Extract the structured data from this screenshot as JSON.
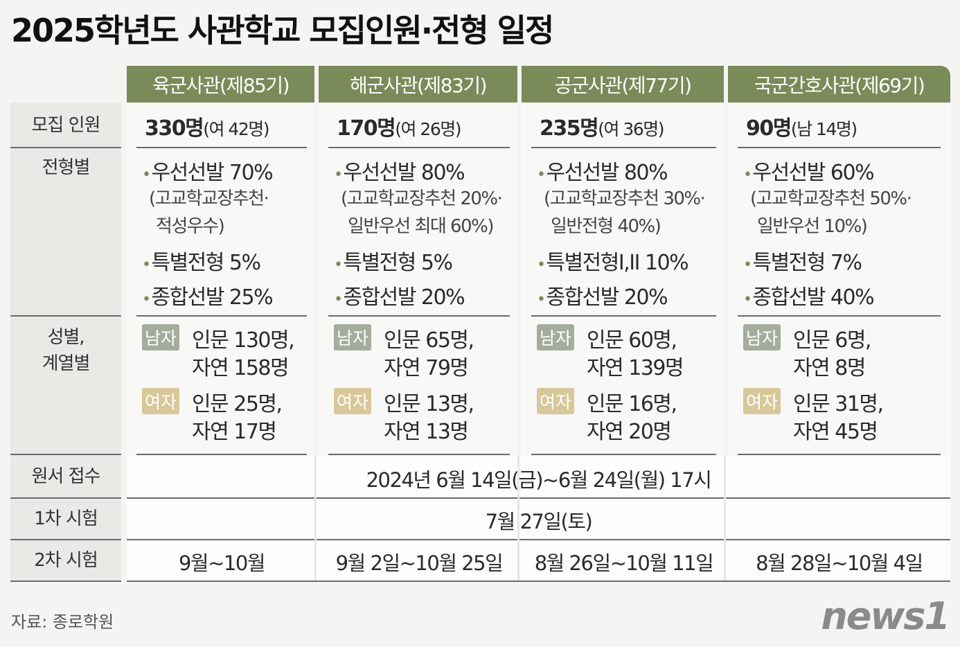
{
  "title": "2025학년도 사관학교 모집인원·전형 일정",
  "row_labels": {
    "quota": "모집 인원",
    "selection": "전형별",
    "gender": [
      "성별,",
      "계열별"
    ],
    "application": "원서 접수",
    "first_exam": "1차 시험",
    "second_exam": "2차 시험"
  },
  "tags": {
    "male": "남자",
    "female": "여자"
  },
  "schools": [
    {
      "name": "육군사관(제85기)",
      "quota": "330명",
      "quota_note": "(여 42명)",
      "selection": [
        {
          "text": "우선선발 70%",
          "note": [
            "(고교학교장추천·",
            "적성우수)"
          ]
        },
        {
          "text": "특별전형 5%"
        },
        {
          "text": "종합선발 25%"
        }
      ],
      "male": [
        "인문 130명,",
        "자연 158명"
      ],
      "female": [
        "인문 25명,",
        "자연 17명"
      ],
      "second_exam": "9월~10월"
    },
    {
      "name": "해군사관(제83기)",
      "quota": "170명",
      "quota_note": "(여 26명)",
      "selection": [
        {
          "text": "우선선발 80%",
          "note": [
            "(고교학교장추천 20%·",
            "일반우선 최대 60%)"
          ]
        },
        {
          "text": "특별전형 5%"
        },
        {
          "text": "종합선발 20%"
        }
      ],
      "male": [
        "인문 65명,",
        "자연 79명"
      ],
      "female": [
        "인문 13명,",
        "자연 13명"
      ],
      "second_exam": "9월 2일~10월 25일"
    },
    {
      "name": "공군사관(제77기)",
      "quota": "235명",
      "quota_note": "(여 36명)",
      "selection": [
        {
          "text": "우선선발 80%",
          "note": [
            "(고교학교장추천 30%·",
            "일반전형 40%)"
          ]
        },
        {
          "text": "특별전형I,II 10%"
        },
        {
          "text": "종합선발 20%"
        }
      ],
      "male": [
        "인문 60명,",
        "자연 139명"
      ],
      "female": [
        "인문 16명,",
        "자연 20명"
      ],
      "second_exam": "8월 26일~10월 11일"
    },
    {
      "name": "국군간호사관(제69기)",
      "quota": "90명",
      "quota_note": "(남 14명)",
      "selection": [
        {
          "text": "우선선발 60%",
          "note": [
            "(고교학교장추천 50%·",
            "일반우선 10%)"
          ]
        },
        {
          "text": "특별전형 7%"
        },
        {
          "text": "종합선발 40%"
        }
      ],
      "male": [
        "인문 6명,",
        "자연 8명"
      ],
      "female": [
        "인문 31명,",
        "자연 45명"
      ],
      "second_exam": "8월 28일~10월 4일"
    }
  ],
  "application": "2024년 6월 14일(금)~6월 24일(월) 17시",
  "first_exam": "7월 27일(토)",
  "source": "자료: 종로학원",
  "logo": "news1"
}
